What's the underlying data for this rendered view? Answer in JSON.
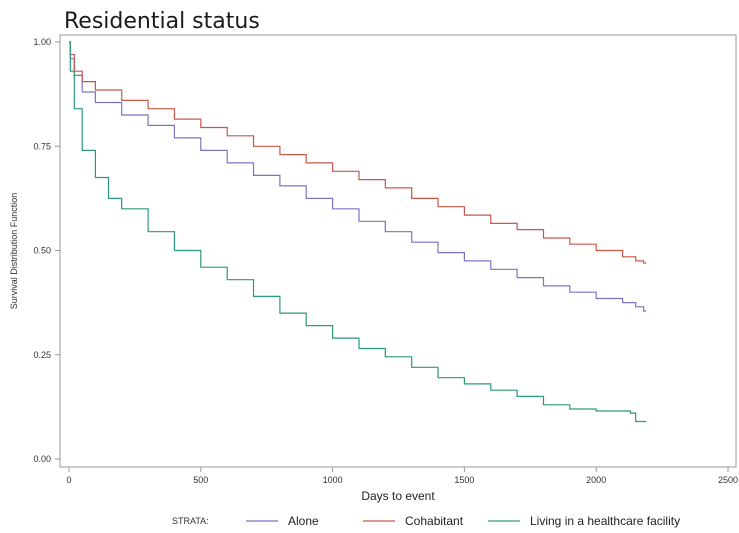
{
  "chart_data": {
    "type": "line",
    "title": "Residential status",
    "xlabel": "Days to event",
    "ylabel": "Survival Distribution Function",
    "xlim": [
      0,
      2500
    ],
    "ylim": [
      0,
      1
    ],
    "x_ticks": [
      "0",
      "500",
      "1000",
      "1500",
      "2000",
      "2500"
    ],
    "y_ticks": [
      "0.00",
      "0.25",
      "0.50",
      "0.75",
      "1.00"
    ],
    "grid": false,
    "legend": {
      "title": "STRATA:",
      "position": "bottom"
    },
    "series": [
      {
        "name": "Alone",
        "color": "#7b74c4",
        "x": [
          0,
          5,
          20,
          50,
          100,
          200,
          300,
          400,
          500,
          600,
          700,
          800,
          900,
          1000,
          1100,
          1200,
          1300,
          1400,
          1500,
          1600,
          1700,
          1800,
          1900,
          2000,
          2100,
          2150,
          2180,
          2190
        ],
        "y": [
          1.0,
          0.96,
          0.92,
          0.88,
          0.855,
          0.825,
          0.8,
          0.77,
          0.74,
          0.71,
          0.68,
          0.655,
          0.625,
          0.6,
          0.57,
          0.545,
          0.52,
          0.495,
          0.475,
          0.455,
          0.435,
          0.415,
          0.4,
          0.385,
          0.375,
          0.365,
          0.355,
          0.355
        ]
      },
      {
        "name": "Cohabitant",
        "color": "#c9574a",
        "x": [
          0,
          5,
          20,
          50,
          100,
          200,
          300,
          400,
          500,
          600,
          700,
          800,
          900,
          1000,
          1100,
          1200,
          1300,
          1400,
          1500,
          1600,
          1700,
          1800,
          1900,
          2000,
          2100,
          2150,
          2180,
          2190
        ],
        "y": [
          1.0,
          0.97,
          0.93,
          0.905,
          0.885,
          0.86,
          0.84,
          0.815,
          0.795,
          0.775,
          0.75,
          0.73,
          0.71,
          0.69,
          0.67,
          0.65,
          0.625,
          0.605,
          0.585,
          0.565,
          0.55,
          0.53,
          0.515,
          0.5,
          0.485,
          0.475,
          0.47,
          0.47
        ]
      },
      {
        "name": "Living in a healthcare facility",
        "color": "#2a9a7c",
        "x": [
          0,
          5,
          20,
          50,
          100,
          150,
          200,
          300,
          400,
          500,
          600,
          700,
          800,
          900,
          1000,
          1100,
          1200,
          1300,
          1400,
          1500,
          1600,
          1700,
          1800,
          1900,
          2000,
          2100,
          2130,
          2150,
          2190
        ],
        "y": [
          1.0,
          0.93,
          0.84,
          0.74,
          0.675,
          0.625,
          0.6,
          0.545,
          0.5,
          0.46,
          0.43,
          0.39,
          0.35,
          0.32,
          0.29,
          0.265,
          0.245,
          0.22,
          0.195,
          0.18,
          0.165,
          0.15,
          0.13,
          0.12,
          0.115,
          0.115,
          0.11,
          0.09,
          0.09
        ]
      }
    ]
  }
}
